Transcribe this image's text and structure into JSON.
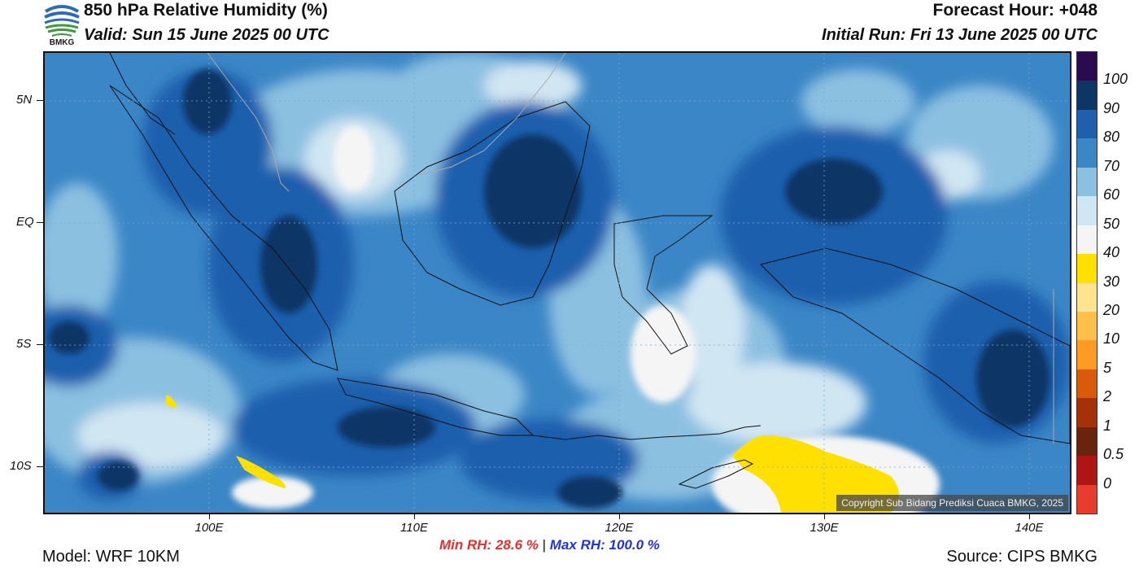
{
  "header": {
    "title": "850 hPa Relative Humidity (%)",
    "valid": "Valid: Sun 15 June 2025 00 UTC",
    "forecast_hour": "Forecast Hour: +048",
    "initial_run": "Initial Run: Fri 13 June 2025 00 UTC",
    "logo_text": "BMKG"
  },
  "map": {
    "lat_labels": [
      "5N",
      "EQ",
      "5S",
      "10S"
    ],
    "lon_labels": [
      "100E",
      "110E",
      "120E",
      "130E",
      "140E"
    ],
    "copyright": "Copyright Sub Bidang Prediksi Cuaca BMKG, 2025"
  },
  "colorbar": {
    "labels": [
      "100",
      "90",
      "80",
      "70",
      "60",
      "50",
      "40",
      "30",
      "20",
      "10",
      "5",
      "2",
      "1",
      "0.5",
      "0"
    ],
    "colors": [
      "#2b0a4f",
      "#0d3566",
      "#1f5fad",
      "#3b86c6",
      "#8cc0e1",
      "#d1e6f3",
      "#f5f5f5",
      "#ffe000",
      "#ffe38f",
      "#ffc04a",
      "#ff9b25",
      "#d95a0a",
      "#a5310a",
      "#6a240e",
      "#b01515",
      "#e83c2e"
    ]
  },
  "stats": {
    "min_label": "Min RH:",
    "min_value": "28.6 %",
    "separator": "|",
    "max_label": "Max RH:",
    "max_value": "100.0 %"
  },
  "footer": {
    "model": "Model: WRF 10KM",
    "source": "Source: CIPS BMKG"
  }
}
